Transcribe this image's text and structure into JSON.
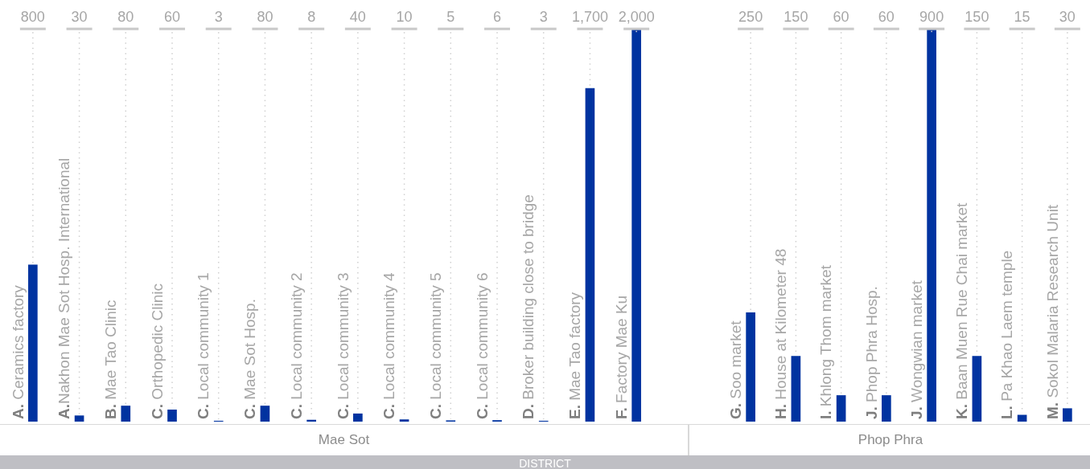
{
  "chart_data": [
    {
      "type": "bar",
      "xlabel": "Mae Sot",
      "color": "#0033a0",
      "categories": [
        "A. Ceramics factory",
        "A.Nakhon Mae Sot Hosp. International",
        "B. Mae Tao Clinic",
        "C. Orthopedic Clinic",
        "C. Local community 1",
        "C. Mae Sot Hosp.",
        "C. Local community 2",
        "C. Local community 3",
        "C. Local community 4",
        "C. Local community 5",
        "C. Local community 6",
        "D. Broker building close to bridge",
        "E. Mae Tao factory",
        "F. Factory Mae Ku"
      ],
      "values": [
        800,
        30,
        80,
        60,
        3,
        80,
        8,
        40,
        10,
        5,
        6,
        3,
        1700,
        2000
      ],
      "value_labels": [
        "800",
        "30",
        "80",
        "60",
        "3",
        "80",
        "8",
        "40",
        "10",
        "5",
        "6",
        "3",
        "1,700",
        "2,000"
      ],
      "annotations": [
        "DISTRICT"
      ]
    },
    {
      "type": "bar",
      "xlabel": "Phop Phra",
      "color": "#0033a0",
      "categories": [
        "G. Soo market",
        "H. House at Kilometer 48",
        "I. Khlong Thom market",
        "J. Phop Phra Hosp.",
        "J. Wongwian market",
        "K. Baan Muen Rue Chai market",
        "L. Pa Khao Laem temple",
        "M. Sokol Malaria Research Unit"
      ],
      "values": [
        250,
        150,
        60,
        60,
        900,
        150,
        15,
        30
      ],
      "value_labels": [
        "250",
        "150",
        "60",
        "60",
        "900",
        "150",
        "15",
        "30"
      ]
    }
  ]
}
